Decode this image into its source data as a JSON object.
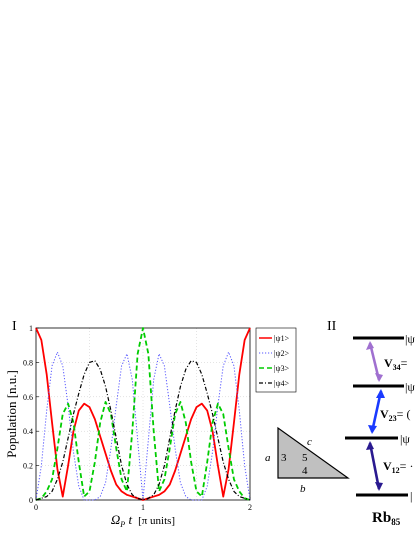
{
  "chart_data": {
    "type": "line",
    "panel_label": "I",
    "xlabel_symbol": "Ω",
    "xlabel_sub": "P",
    "xlabel_t": " t",
    "xlabel_units": "[π units]",
    "ylabel": "Population [n.u.]",
    "xlim": [
      0,
      2
    ],
    "ylim": [
      0,
      1
    ],
    "xticks": [
      "0",
      "1",
      "2"
    ],
    "yticks": [
      "0",
      "0.2",
      "0.4",
      "0.6",
      "0.8",
      "1"
    ],
    "grid": true,
    "legend_position": "right of plot, top",
    "x": [
      0,
      0.05,
      0.1,
      0.15,
      0.2,
      0.25,
      0.3,
      0.35,
      0.4,
      0.45,
      0.5,
      0.55,
      0.6,
      0.65,
      0.7,
      0.75,
      0.8,
      0.85,
      0.9,
      0.95,
      1.0,
      1.05,
      1.1,
      1.15,
      1.2,
      1.25,
      1.3,
      1.35,
      1.4,
      1.45,
      1.5,
      1.55,
      1.6,
      1.65,
      1.7,
      1.75,
      1.8,
      1.85,
      1.9,
      1.95,
      2.0
    ],
    "series": [
      {
        "name": "|ψ1>",
        "color": "#ff0000",
        "dash": "",
        "width": 1.8,
        "values": [
          1.0,
          0.93,
          0.73,
          0.45,
          0.18,
          0.02,
          0.2,
          0.4,
          0.52,
          0.56,
          0.54,
          0.47,
          0.37,
          0.27,
          0.17,
          0.09,
          0.05,
          0.03,
          0.02,
          0.01,
          0.0,
          0.01,
          0.02,
          0.03,
          0.05,
          0.09,
          0.17,
          0.27,
          0.37,
          0.47,
          0.54,
          0.56,
          0.52,
          0.4,
          0.2,
          0.02,
          0.18,
          0.45,
          0.73,
          0.93,
          1.0
        ]
      },
      {
        "name": "|ψ2>",
        "color": "#5555ff",
        "dash": "1.2,1.8",
        "width": 1.0,
        "values": [
          0.0,
          0.2,
          0.52,
          0.78,
          0.86,
          0.78,
          0.55,
          0.28,
          0.08,
          0.0,
          0.0,
          0.0,
          0.02,
          0.1,
          0.3,
          0.55,
          0.78,
          0.85,
          0.7,
          0.35,
          0.0,
          0.35,
          0.7,
          0.85,
          0.78,
          0.55,
          0.3,
          0.1,
          0.02,
          0.0,
          0.0,
          0.0,
          0.08,
          0.28,
          0.55,
          0.78,
          0.86,
          0.78,
          0.52,
          0.2,
          0.0
        ]
      },
      {
        "name": "|ψ3>",
        "color": "#00cc00",
        "dash": "5,3",
        "width": 1.8,
        "values": [
          0.0,
          0.01,
          0.05,
          0.12,
          0.3,
          0.5,
          0.56,
          0.45,
          0.22,
          0.02,
          0.05,
          0.22,
          0.45,
          0.57,
          0.5,
          0.3,
          0.12,
          0.05,
          0.4,
          0.85,
          1.0,
          0.85,
          0.4,
          0.05,
          0.12,
          0.3,
          0.5,
          0.57,
          0.45,
          0.22,
          0.05,
          0.02,
          0.22,
          0.45,
          0.56,
          0.5,
          0.3,
          0.12,
          0.05,
          0.01,
          0.0
        ]
      },
      {
        "name": "|ψ4>",
        "color": "#000000",
        "dash": "4,2,1,2",
        "width": 1.2,
        "values": [
          0.0,
          0.01,
          0.02,
          0.05,
          0.12,
          0.22,
          0.36,
          0.5,
          0.62,
          0.73,
          0.8,
          0.81,
          0.76,
          0.66,
          0.52,
          0.36,
          0.2,
          0.09,
          0.03,
          0.01,
          0.0,
          0.01,
          0.03,
          0.09,
          0.2,
          0.36,
          0.52,
          0.66,
          0.76,
          0.81,
          0.8,
          0.73,
          0.62,
          0.5,
          0.36,
          0.22,
          0.12,
          0.05,
          0.02,
          0.01,
          0.0
        ]
      }
    ]
  },
  "diagram": {
    "panel_label": "II",
    "atom_label_main": "Rb",
    "atom_label_sub": "85",
    "levels": [
      {
        "label": "|ψ"
      },
      {
        "label": "|ψ"
      },
      {
        "label": "|ψ"
      },
      {
        "label": "|"
      }
    ],
    "couplings": [
      {
        "name_main": "V",
        "name_sub": "34",
        "suffix": "=",
        "color": "#a070d0"
      },
      {
        "name_main": "V",
        "name_sub": "23",
        "suffix": "= (",
        "color": "#1a3aff"
      },
      {
        "name_main": "V",
        "name_sub": "12",
        "suffix": "= ·",
        "color": "#2a1a90"
      }
    ],
    "triangle": {
      "side_a": "a",
      "side_b": "b",
      "side_c": "c",
      "num_3": "3",
      "num_4": "4",
      "num_5": "5",
      "fill": "#c0c0c0"
    }
  }
}
